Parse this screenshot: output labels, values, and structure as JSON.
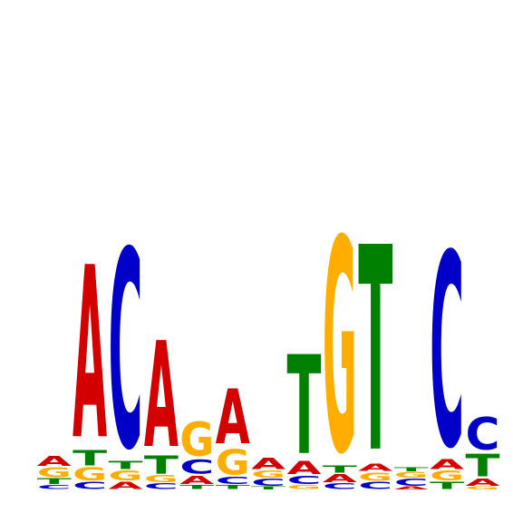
{
  "sequence_logo": {
    "colors": {
      "A": "#d40000",
      "C": "#0000c8",
      "G": "#ffae00",
      "T": "#008000"
    },
    "max_bits": 2.0,
    "positions": [
      [
        [
          "C",
          0.03
        ],
        [
          "T",
          0.04
        ],
        [
          "G",
          0.07
        ],
        [
          "A",
          0.07
        ]
      ],
      [
        [
          "C",
          0.05
        ],
        [
          "G",
          0.09
        ],
        [
          "T",
          0.11
        ],
        [
          "A",
          1.22
        ]
      ],
      [
        [
          "A",
          0.05
        ],
        [
          "G",
          0.07
        ],
        [
          "T",
          0.06
        ],
        [
          "C",
          1.4
        ]
      ],
      [
        [
          "C",
          0.04
        ],
        [
          "G",
          0.05
        ],
        [
          "T",
          0.13
        ],
        [
          "A",
          0.75
        ]
      ],
      [
        [
          "T",
          0.03
        ],
        [
          "A",
          0.06
        ],
        [
          "C",
          0.1
        ],
        [
          "G",
          0.24
        ]
      ],
      [
        [
          "T",
          0.03
        ],
        [
          "C",
          0.05
        ],
        [
          "G",
          0.18
        ],
        [
          "A",
          0.39
        ]
      ],
      [
        [
          "T",
          0.02
        ],
        [
          "C",
          0.05
        ],
        [
          "G",
          0.05
        ],
        [
          "A",
          0.08
        ]
      ],
      [
        [
          "G",
          0.03
        ],
        [
          "C",
          0.06
        ],
        [
          "A",
          0.09
        ],
        [
          "T",
          0.7
        ]
      ],
      [
        [
          "C",
          0.04
        ],
        [
          "A",
          0.06
        ],
        [
          "T",
          0.05
        ],
        [
          "G",
          1.51
        ]
      ],
      [
        [
          "C",
          0.05
        ],
        [
          "G",
          0.06
        ],
        [
          "A",
          0.05
        ],
        [
          "T",
          1.45
        ]
      ],
      [
        [
          "A",
          0.02
        ],
        [
          "C",
          0.05
        ],
        [
          "G",
          0.04
        ],
        [
          "T",
          0.03
        ]
      ],
      [
        [
          "T",
          0.05
        ],
        [
          "G",
          0.07
        ],
        [
          "A",
          0.07
        ],
        [
          "C",
          1.37
        ]
      ],
      [
        [
          "G",
          0.02
        ],
        [
          "A",
          0.05
        ],
        [
          "T",
          0.16
        ],
        [
          "C",
          0.23
        ]
      ]
    ]
  }
}
